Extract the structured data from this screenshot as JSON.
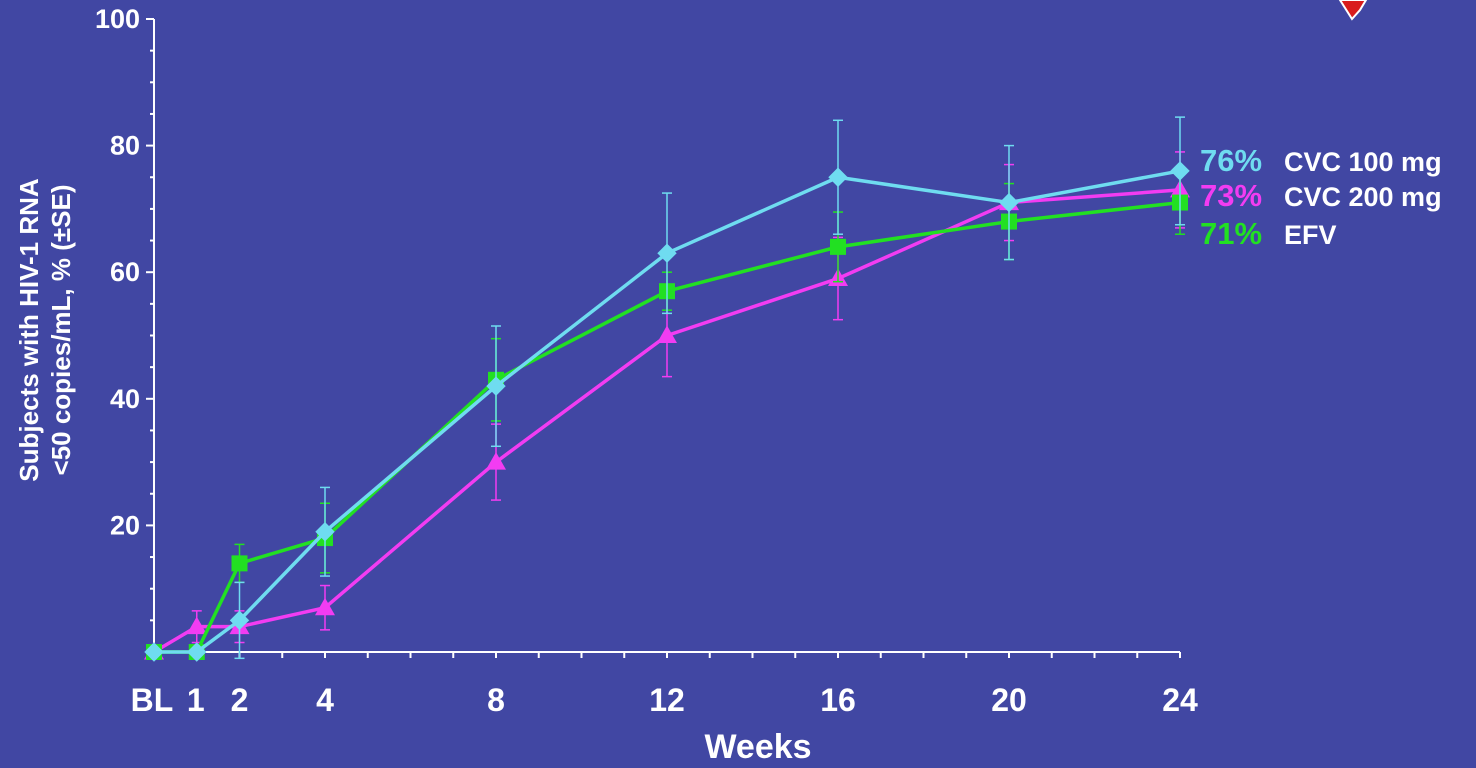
{
  "chart_data": {
    "type": "line",
    "title": "",
    "xlabel": "Weeks",
    "ylabel_lines": [
      "Subjects with HIV-1 RNA",
      "<50 copies/mL, % (±SE)"
    ],
    "ylim": [
      0,
      100
    ],
    "yticks": [
      "20",
      "40",
      "60",
      "80",
      "100"
    ],
    "x_ticks": [
      {
        "x": 0,
        "label": "BL"
      },
      {
        "x": 1,
        "label": "1"
      },
      {
        "x": 2,
        "label": "2"
      },
      {
        "x": 4,
        "label": "4"
      },
      {
        "x": 8,
        "label": "8"
      },
      {
        "x": 12,
        "label": "12"
      },
      {
        "x": 16,
        "label": "16"
      },
      {
        "x": 20,
        "label": "20"
      },
      {
        "x": 24,
        "label": "24"
      }
    ],
    "grid": false,
    "series": [
      {
        "name": "CVC 100 mg",
        "end_label": "76%",
        "color": "#6fdcf0",
        "marker": "diamond",
        "x": [
          0,
          1,
          2,
          4,
          8,
          12,
          16,
          20,
          24
        ],
        "y": [
          0,
          0,
          5,
          19,
          42,
          63,
          75,
          71,
          76
        ],
        "err": [
          0,
          0,
          6,
          7,
          9.5,
          9.5,
          9,
          9,
          8.5
        ]
      },
      {
        "name": "CVC 200 mg",
        "end_label": "73%",
        "color": "#f23cf2",
        "marker": "triangle",
        "x": [
          0,
          1,
          2,
          4,
          8,
          12,
          16,
          20,
          24
        ],
        "y": [
          0,
          4,
          4,
          7,
          30,
          50,
          59,
          71,
          73
        ],
        "err": [
          0,
          2.5,
          2.5,
          3.5,
          6,
          6.5,
          6.5,
          6,
          6
        ]
      },
      {
        "name": "EFV",
        "end_label": "71%",
        "color": "#22e022",
        "marker": "square",
        "x": [
          0,
          1,
          2,
          4,
          8,
          12,
          16,
          20,
          24
        ],
        "y": [
          0,
          0,
          14,
          18,
          43,
          57,
          64,
          68,
          71
        ],
        "err": [
          0,
          0,
          3,
          5.5,
          6.5,
          3,
          5.5,
          6,
          5
        ]
      }
    ],
    "legend": "right, at line ends"
  }
}
